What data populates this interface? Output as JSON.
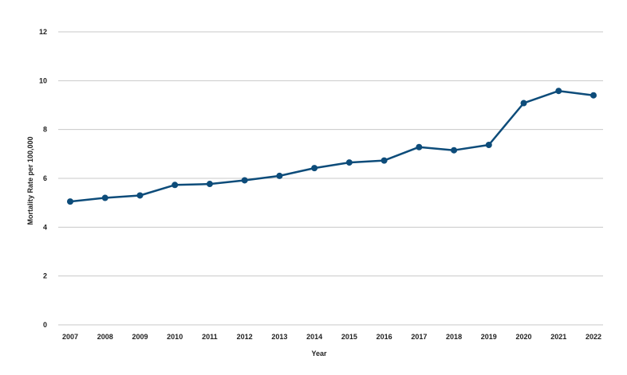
{
  "chart_data": {
    "type": "line",
    "title": "",
    "xlabel": "Year",
    "ylabel": "Mortality Rate per 100,000",
    "x": [
      "2007",
      "2008",
      "2009",
      "2010",
      "2011",
      "2012",
      "2013",
      "2014",
      "2015",
      "2016",
      "2017",
      "2018",
      "2019",
      "2020",
      "2021",
      "2022"
    ],
    "series": [
      {
        "values": [
          5.05,
          5.2,
          5.3,
          5.73,
          5.77,
          5.92,
          6.1,
          6.42,
          6.65,
          6.73,
          7.28,
          7.15,
          7.37,
          9.08,
          9.58,
          9.4
        ],
        "color": "#0d4c7a"
      }
    ],
    "ylim": [
      0,
      12
    ],
    "yticks": [
      0,
      2,
      4,
      6,
      8,
      10,
      12
    ],
    "grid": "horizontal",
    "legend": "none"
  }
}
